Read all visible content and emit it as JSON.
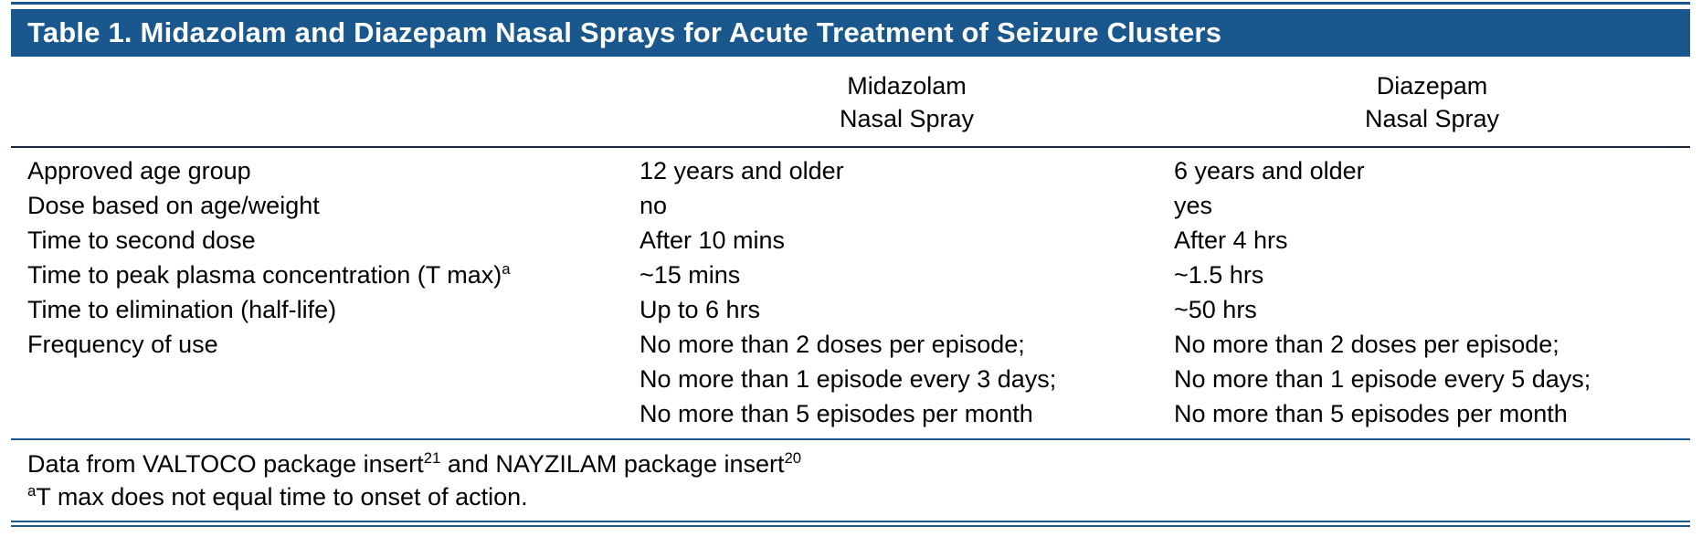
{
  "colors": {
    "header_bg": "#19578c",
    "rule_dark": "#182433",
    "rule_blue": "#19578c",
    "header_text": "#ffffff",
    "body_text": "#000000"
  },
  "table": {
    "title": "Table 1. Midazolam and Diazepam Nasal Sprays for Acute Treatment of Seizure Clusters",
    "columns": {
      "midazolam": {
        "line1": "Midazolam",
        "line2": "Nasal Spray"
      },
      "diazepam": {
        "line1": "Diazepam",
        "line2": "Nasal Spray"
      }
    },
    "rows": [
      {
        "label": "Approved age group",
        "sup": "",
        "midazolam": [
          "12 years and older"
        ],
        "diazepam": [
          "6 years and older"
        ]
      },
      {
        "label": "Dose based on age/weight",
        "sup": "",
        "midazolam": [
          "no"
        ],
        "diazepam": [
          "yes"
        ]
      },
      {
        "label": "Time to second dose",
        "sup": "",
        "midazolam": [
          "After 10 mins"
        ],
        "diazepam": [
          "After 4 hrs"
        ]
      },
      {
        "label": "Time to peak plasma concentration (T max)",
        "sup": "a",
        "midazolam": [
          "~15 mins"
        ],
        "diazepam": [
          "~1.5 hrs"
        ]
      },
      {
        "label": "Time to elimination (half-life)",
        "sup": "",
        "midazolam": [
          "Up to 6 hrs"
        ],
        "diazepam": [
          "~50 hrs"
        ]
      },
      {
        "label": "Frequency of use",
        "sup": "",
        "midazolam": [
          "No more than 2 doses per episode;",
          "No more than 1 episode every 3 days;",
          "No more than 5 episodes per month"
        ],
        "diazepam": [
          "No more than 2 doses per episode;",
          "No more than 1 episode every 5 days;",
          "No more than 5 episodes per month"
        ]
      }
    ],
    "footnotes": {
      "source": {
        "part1": "Data from VALTOCO package insert",
        "sup1": "21",
        "part2": " and NAYZILAM package insert",
        "sup2": "20"
      },
      "tmax": {
        "sup": "a",
        "text": "T max does not equal time to onset of action."
      }
    }
  }
}
